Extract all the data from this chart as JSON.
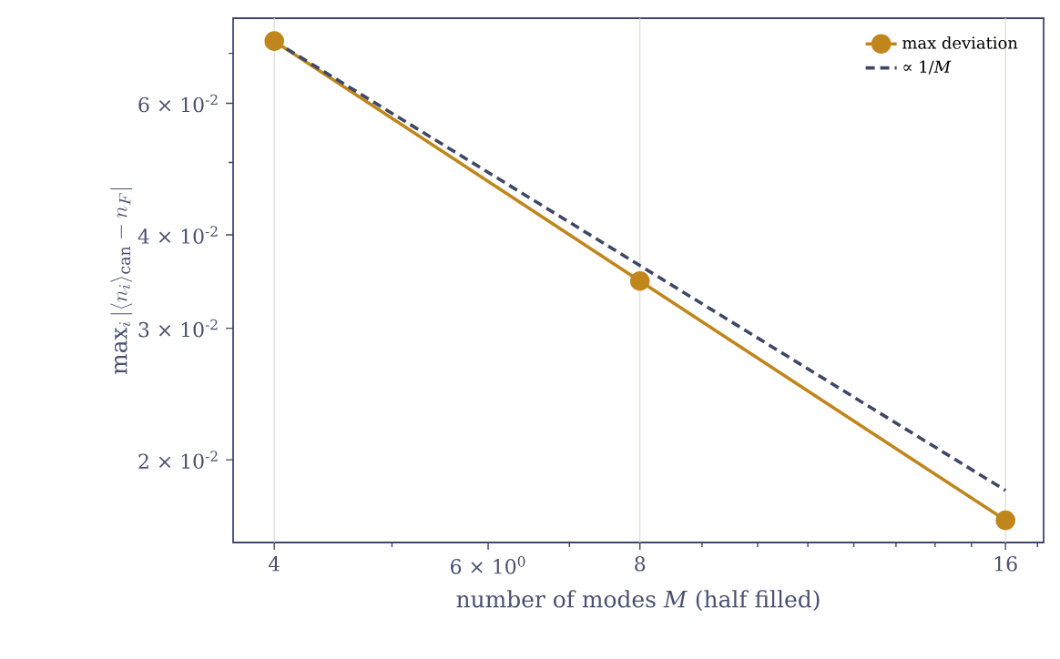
{
  "chart_data": {
    "type": "line",
    "xlabel": "number of modes *M* (half filled)",
    "ylabel": "\\max_i \\left|\\langle n_i\\rangle_{\\mathrm{can}} - n_F\\right|",
    "x": [
      4,
      8,
      16
    ],
    "series": [
      {
        "name": "max deviation",
        "color": "#c0861c",
        "values": [
          0.0727,
          0.0347,
          0.0166
        ],
        "marker": "circle",
        "line_style": "solid"
      },
      {
        "name": "∝ 1/*M*",
        "color": "#3f4766",
        "values": [
          0.0727,
          0.0364,
          0.0182
        ],
        "marker": "none",
        "line_style": "dashed"
      }
    ],
    "log": "xy",
    "xlim": [
      3.7,
      17.2
    ],
    "ylim": [
      0.0155,
      0.078
    ],
    "xticks": [
      4,
      {
        "value": 6,
        "label": "6 × 10$^{0}$"
      },
      8,
      16
    ],
    "yticks": [
      {
        "value": 0.02,
        "label": "2 × 10$^{-2}$"
      },
      {
        "value": 0.03,
        "label": "3 × 10$^{-2}$"
      },
      {
        "value": 0.04,
        "label": "4 × 10$^{-2}$"
      },
      {
        "value": 0.06,
        "label": "6 × 10$^{-2}$"
      }
    ],
    "grid": "x",
    "legend": "top right"
  }
}
